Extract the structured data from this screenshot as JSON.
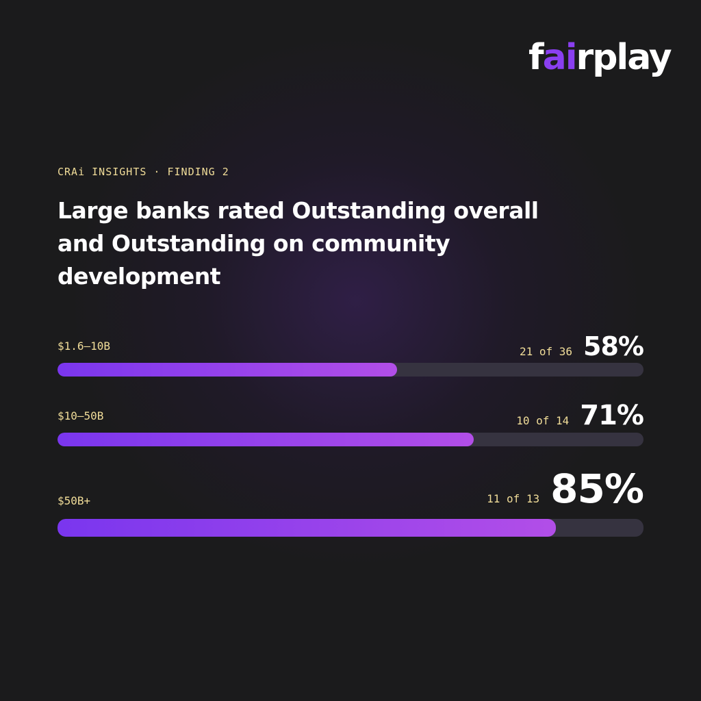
{
  "brand": {
    "logo_prefix": "f",
    "logo_accent": "ai",
    "logo_suffix": "rplay",
    "accent_color": "#8a3ff0"
  },
  "eyebrow": "CRAi INSIGHTS · FINDING 2",
  "title": "Large banks rated Outstanding overall and Outstanding on community development",
  "colors": {
    "label_yellow": "#f1dd99",
    "bar_gradient_start": "#7a36ee",
    "bar_gradient_end": "#b24ee8",
    "track": "#363340",
    "background": "#1b1b1c"
  },
  "chart_data": {
    "type": "bar",
    "orientation": "horizontal",
    "title": "Large banks rated Outstanding overall and Outstanding on community development",
    "categories": [
      "$1.6–10B",
      "$10–50B",
      "$50B+"
    ],
    "values": [
      58,
      71,
      85
    ],
    "value_labels": [
      "58%",
      "71%",
      "85%"
    ],
    "counts": [
      "21 of 36",
      "10 of 14",
      "11 of 13"
    ],
    "xlim": [
      0,
      100
    ],
    "grid": false,
    "legend": "none"
  }
}
